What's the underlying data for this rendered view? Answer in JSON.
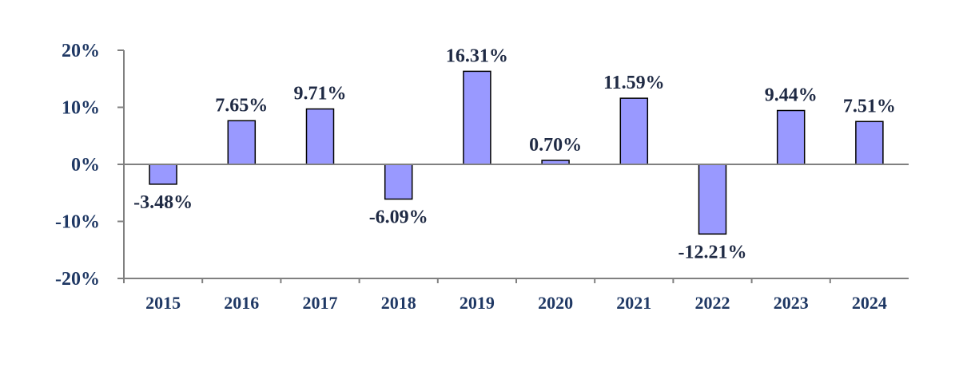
{
  "chart_data": {
    "type": "bar",
    "categories": [
      "2015",
      "2016",
      "2017",
      "2018",
      "2019",
      "2020",
      "2021",
      "2022",
      "2023",
      "2024"
    ],
    "values": [
      -3.48,
      7.65,
      9.71,
      -6.09,
      16.31,
      0.7,
      11.59,
      -12.21,
      9.44,
      7.51
    ],
    "data_labels": [
      "-3.48%",
      "7.65%",
      "9.71%",
      "-6.09%",
      "16.31%",
      "0.70%",
      "11.59%",
      "-12.21%",
      "9.44%",
      "7.51%"
    ],
    "y_ticks": [
      20,
      10,
      0,
      -10,
      -20
    ],
    "y_tick_labels": [
      "20%",
      "10%",
      "0%",
      "-10%",
      "-20%"
    ],
    "ylim": [
      -20,
      20
    ],
    "grid": false,
    "legend": "none",
    "title": "",
    "xlabel": "",
    "ylabel": "",
    "bar_color": "#9999ff",
    "text_color": "#1f3864"
  }
}
